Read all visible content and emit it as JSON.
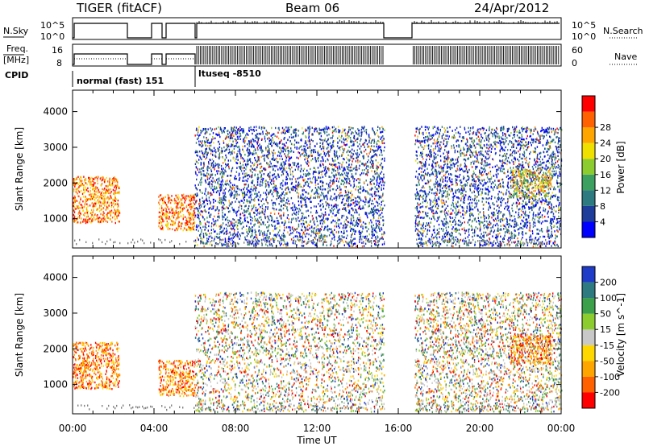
{
  "header": {
    "station": "TIGER (fitACF)",
    "beam": "Beam 06",
    "date": "24/Apr/2012"
  },
  "panels": {
    "nsky_label": "N.Sky",
    "nsky_ticks": [
      "10^5",
      "10^0"
    ],
    "nsearch_label": "N.Search",
    "nsearch_ticks": [
      "10^5",
      "10^0"
    ],
    "freq_label": [
      "Freq.",
      "[MHz]"
    ],
    "freq_ticks": [
      "16",
      "8"
    ],
    "nave_label": "Nave",
    "nave_ticks": [
      "60",
      "0"
    ],
    "cpid_label": "CPID",
    "cpid_modes": [
      "normal (fast) 151",
      "ltuseq -8510"
    ]
  },
  "axes": {
    "xlabel": "Time UT",
    "xticks": [
      "00:00",
      "04:00",
      "08:00",
      "12:00",
      "16:00",
      "20:00",
      "00:00"
    ],
    "ylabel": "Slant Range [km]",
    "yticks": [
      "1000",
      "2000",
      "3000",
      "4000"
    ]
  },
  "colors": {
    "ground_scatter": "#808080",
    "power_scale": [
      "#0000ff",
      "#1e3c9a",
      "#2d7a80",
      "#3ca060",
      "#8ccc2e",
      "#f0e000",
      "#ffa500",
      "#ff6000",
      "#ff0000"
    ],
    "velocity_scale": [
      "#1e3cc8",
      "#2d7a80",
      "#3ca04a",
      "#8ccc2e",
      "#c8c8c8",
      "#ffd700",
      "#ffa500",
      "#ff6000",
      "#ff0000"
    ]
  },
  "chart_data": [
    {
      "type": "heatmap",
      "name": "Power",
      "xlabel": "Time UT",
      "ylabel": "Slant Range [km]",
      "xlim": [
        0,
        24
      ],
      "ylim": [
        180,
        4600
      ],
      "colorbar_label": "Power [dB]",
      "colorbar_ticks": [
        4,
        8,
        12,
        16,
        20,
        24,
        28
      ],
      "data_gaps_ut": [
        [
          15.3,
          16.8
        ]
      ],
      "echo_regions": [
        {
          "t": [
            0.0,
            2.3
          ],
          "r": [
            900,
            2200
          ],
          "level": "high"
        },
        {
          "t": [
            4.2,
            6.0
          ],
          "r": [
            700,
            1700
          ],
          "level": "high"
        },
        {
          "t": [
            6.0,
            15.3
          ],
          "r": [
            250,
            3600
          ],
          "level": "mixed"
        },
        {
          "t": [
            16.8,
            24.0
          ],
          "r": [
            250,
            3600
          ],
          "level": "mixed"
        },
        {
          "t": [
            21.5,
            23.5
          ],
          "r": [
            1600,
            2400
          ],
          "level": "medium"
        }
      ]
    },
    {
      "type": "heatmap",
      "name": "Velocity",
      "xlabel": "Time UT",
      "ylabel": "Slant Range [km]",
      "xlim": [
        0,
        24
      ],
      "ylim": [
        180,
        4600
      ],
      "colorbar_label": "Velocity [m s^-1]",
      "colorbar_ticks": [
        200,
        100,
        50,
        15,
        -15,
        -50,
        -100,
        -200
      ],
      "data_gaps_ut": [
        [
          15.3,
          16.8
        ]
      ],
      "echo_regions": [
        {
          "t": [
            0.0,
            2.3
          ],
          "r": [
            900,
            2200
          ],
          "level": "negative"
        },
        {
          "t": [
            4.2,
            6.0
          ],
          "r": [
            700,
            1700
          ],
          "level": "negative"
        },
        {
          "t": [
            6.0,
            15.3
          ],
          "r": [
            250,
            3600
          ],
          "level": "mixed"
        },
        {
          "t": [
            16.8,
            24.0
          ],
          "r": [
            250,
            3600
          ],
          "level": "mixed"
        },
        {
          "t": [
            21.5,
            23.5
          ],
          "r": [
            1600,
            2400
          ],
          "level": "negative"
        }
      ]
    }
  ]
}
